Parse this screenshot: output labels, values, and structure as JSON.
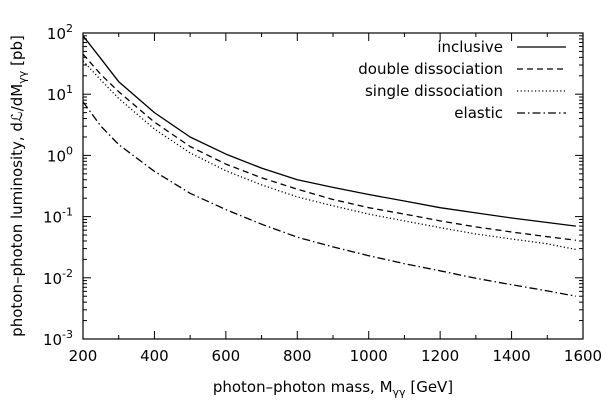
{
  "chart_data": {
    "type": "line",
    "xlabel": "photon–photon mass, M",
    "xlabel_sub": "γγ",
    "xlabel_unit": " [GeV]",
    "ylabel": "photon–photon luminosity, dℒ/dM",
    "ylabel_sub": "γγ",
    "ylabel_unit": " [pb]",
    "xlim": [
      200,
      1600
    ],
    "ylim": [
      0.001,
      100
    ],
    "yscale": "log",
    "x_ticks": [
      200,
      400,
      600,
      800,
      1000,
      1200,
      1400,
      1600
    ],
    "y_ticks": [
      {
        "value": 0.001,
        "base": "10",
        "exp": "-3"
      },
      {
        "value": 0.01,
        "base": "10",
        "exp": "-2"
      },
      {
        "value": 0.1,
        "base": "10",
        "exp": "-1"
      },
      {
        "value": 1,
        "base": "10",
        "exp": "0"
      },
      {
        "value": 10,
        "base": "10",
        "exp": "1"
      },
      {
        "value": 100,
        "base": "10",
        "exp": "2"
      }
    ],
    "legend_position": "top-right",
    "grid": false,
    "series": [
      {
        "name": "inclusive",
        "style": "solid",
        "x": [
          200,
          250,
          300,
          400,
          500,
          600,
          700,
          800,
          900,
          1000,
          1100,
          1200,
          1300,
          1400,
          1500,
          1580
        ],
        "y": [
          90,
          38,
          16,
          5.0,
          2.0,
          1.05,
          0.62,
          0.4,
          0.3,
          0.23,
          0.18,
          0.14,
          0.115,
          0.095,
          0.08,
          0.07
        ]
      },
      {
        "name": "double dissociation",
        "style": "dashed",
        "x": [
          200,
          250,
          300,
          400,
          500,
          600,
          700,
          800,
          900,
          1000,
          1100,
          1200,
          1300,
          1400,
          1500,
          1580
        ],
        "y": [
          45,
          21,
          11,
          3.5,
          1.4,
          0.72,
          0.43,
          0.28,
          0.19,
          0.14,
          0.11,
          0.085,
          0.068,
          0.056,
          0.047,
          0.041
        ]
      },
      {
        "name": "single dissociation",
        "style": "dotted",
        "x": [
          200,
          250,
          300,
          400,
          500,
          600,
          700,
          800,
          900,
          1000,
          1100,
          1200,
          1300,
          1400,
          1500,
          1580
        ],
        "y": [
          35,
          17,
          8.5,
          2.7,
          1.1,
          0.56,
          0.33,
          0.21,
          0.15,
          0.11,
          0.085,
          0.066,
          0.052,
          0.043,
          0.036,
          0.029
        ]
      },
      {
        "name": "elastic",
        "style": "dashdot",
        "x": [
          200,
          250,
          300,
          400,
          500,
          600,
          700,
          800,
          900,
          1000,
          1100,
          1200,
          1300,
          1400,
          1500,
          1580
        ],
        "y": [
          7.5,
          3.0,
          1.5,
          0.55,
          0.24,
          0.13,
          0.075,
          0.046,
          0.032,
          0.023,
          0.017,
          0.013,
          0.0098,
          0.0077,
          0.0061,
          0.005
        ]
      }
    ]
  }
}
